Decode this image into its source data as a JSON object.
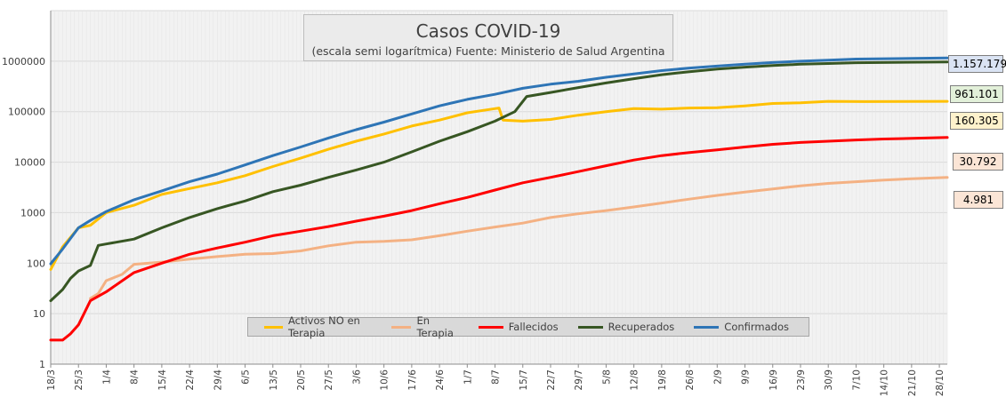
{
  "chart_data": {
    "type": "line",
    "title": "Casos COVID-19",
    "subtitle": "(escala semi logarítmica) Fuente: Ministerio de Salud Argentina",
    "y_scale": "log",
    "ylim": [
      1,
      10000000
    ],
    "y_ticks": [
      "1",
      "10",
      "100",
      "1000",
      "10000",
      "100000",
      "1000000"
    ],
    "x_tick_labels": [
      "18/3",
      "25/3",
      "1/4",
      "8/4",
      "15/4",
      "22/4",
      "29/4",
      "6/5",
      "13/5",
      "20/5",
      "27/5",
      "3/6",
      "10/6",
      "17/6",
      "24/6",
      "1/7",
      "8/7",
      "15/7",
      "22/7",
      "29/7",
      "5/8",
      "12/8",
      "19/8",
      "26/8",
      "2/9",
      "9/9",
      "16/9",
      "23/9",
      "30/9",
      "7/10",
      "14/10",
      "21/10",
      "28/10"
    ],
    "x_range_days": [
      "18/3",
      "30/10"
    ],
    "grid": true,
    "legend_position": "bottom",
    "background": "#f2f2f2",
    "series": [
      {
        "name": "Activos NO en Terapia",
        "color": "#ffc000",
        "points": [
          [
            0,
            75
          ],
          [
            3,
            210
          ],
          [
            7,
            500
          ],
          [
            10,
            560
          ],
          [
            14,
            1000
          ],
          [
            21,
            1400
          ],
          [
            28,
            2300
          ],
          [
            35,
            3000
          ],
          [
            42,
            3900
          ],
          [
            49,
            5400
          ],
          [
            56,
            8200
          ],
          [
            63,
            12000
          ],
          [
            70,
            18000
          ],
          [
            77,
            26000
          ],
          [
            84,
            36000
          ],
          [
            91,
            52000
          ],
          [
            98,
            68000
          ],
          [
            105,
            95000
          ],
          [
            112,
            115000
          ],
          [
            113,
            118000
          ],
          [
            114,
            68000
          ],
          [
            119,
            65000
          ],
          [
            126,
            70000
          ],
          [
            133,
            85000
          ],
          [
            140,
            100000
          ],
          [
            147,
            115000
          ],
          [
            154,
            112000
          ],
          [
            161,
            118000
          ],
          [
            168,
            120000
          ],
          [
            175,
            130000
          ],
          [
            182,
            145000
          ],
          [
            189,
            150000
          ],
          [
            196,
            160000
          ],
          [
            205,
            158000
          ],
          [
            226,
            160305
          ]
        ],
        "last_label": "160.305"
      },
      {
        "name": "En Terapia",
        "color": "#f4b183",
        "points": [
          [
            10,
            20
          ],
          [
            12,
            25
          ],
          [
            14,
            45
          ],
          [
            18,
            60
          ],
          [
            21,
            95
          ],
          [
            28,
            105
          ],
          [
            35,
            120
          ],
          [
            42,
            135
          ],
          [
            49,
            150
          ],
          [
            56,
            155
          ],
          [
            63,
            175
          ],
          [
            70,
            220
          ],
          [
            77,
            260
          ],
          [
            84,
            270
          ],
          [
            91,
            290
          ],
          [
            98,
            350
          ],
          [
            105,
            430
          ],
          [
            112,
            520
          ],
          [
            119,
            620
          ],
          [
            126,
            800
          ],
          [
            133,
            950
          ],
          [
            140,
            1100
          ],
          [
            147,
            1300
          ],
          [
            154,
            1550
          ],
          [
            161,
            1850
          ],
          [
            168,
            2200
          ],
          [
            175,
            2550
          ],
          [
            182,
            2950
          ],
          [
            189,
            3400
          ],
          [
            196,
            3800
          ],
          [
            203,
            4100
          ],
          [
            210,
            4400
          ],
          [
            217,
            4700
          ],
          [
            226,
            4981
          ]
        ],
        "last_label": "4.981"
      },
      {
        "name": "Fallecidos",
        "color": "#ff0000",
        "points": [
          [
            0,
            3
          ],
          [
            3,
            3
          ],
          [
            5,
            4
          ],
          [
            7,
            6
          ],
          [
            10,
            18
          ],
          [
            14,
            27
          ],
          [
            21,
            65
          ],
          [
            28,
            100
          ],
          [
            35,
            150
          ],
          [
            42,
            200
          ],
          [
            49,
            260
          ],
          [
            56,
            350
          ],
          [
            63,
            430
          ],
          [
            70,
            530
          ],
          [
            77,
            680
          ],
          [
            84,
            850
          ],
          [
            91,
            1100
          ],
          [
            98,
            1500
          ],
          [
            105,
            2000
          ],
          [
            112,
            2800
          ],
          [
            119,
            3900
          ],
          [
            126,
            5000
          ],
          [
            133,
            6500
          ],
          [
            140,
            8500
          ],
          [
            147,
            11000
          ],
          [
            154,
            13500
          ],
          [
            161,
            15500
          ],
          [
            168,
            17500
          ],
          [
            175,
            20000
          ],
          [
            182,
            22500
          ],
          [
            189,
            24500
          ],
          [
            196,
            26000
          ],
          [
            203,
            27500
          ],
          [
            210,
            28800
          ],
          [
            226,
            30792
          ]
        ],
        "last_label": "30.792"
      },
      {
        "name": "Recuperados",
        "color": "#375623",
        "points": [
          [
            0,
            18
          ],
          [
            3,
            30
          ],
          [
            5,
            50
          ],
          [
            7,
            70
          ],
          [
            10,
            90
          ],
          [
            12,
            225
          ],
          [
            14,
            240
          ],
          [
            21,
            300
          ],
          [
            28,
            500
          ],
          [
            35,
            800
          ],
          [
            42,
            1200
          ],
          [
            49,
            1700
          ],
          [
            56,
            2600
          ],
          [
            63,
            3500
          ],
          [
            70,
            5000
          ],
          [
            77,
            7000
          ],
          [
            84,
            10000
          ],
          [
            91,
            16000
          ],
          [
            98,
            26000
          ],
          [
            105,
            40000
          ],
          [
            112,
            65000
          ],
          [
            117,
            100000
          ],
          [
            120,
            200000
          ],
          [
            126,
            240000
          ],
          [
            133,
            300000
          ],
          [
            140,
            370000
          ],
          [
            147,
            450000
          ],
          [
            154,
            540000
          ],
          [
            161,
            620000
          ],
          [
            168,
            700000
          ],
          [
            175,
            760000
          ],
          [
            182,
            820000
          ],
          [
            189,
            870000
          ],
          [
            196,
            900000
          ],
          [
            203,
            930000
          ],
          [
            226,
            961101
          ]
        ],
        "last_label": "961.101"
      },
      {
        "name": "Confirmados",
        "color": "#2e75b6",
        "points": [
          [
            0,
            97
          ],
          [
            3,
            190
          ],
          [
            7,
            500
          ],
          [
            10,
            700
          ],
          [
            14,
            1050
          ],
          [
            21,
            1800
          ],
          [
            28,
            2700
          ],
          [
            35,
            4100
          ],
          [
            42,
            5800
          ],
          [
            49,
            8800
          ],
          [
            56,
            13500
          ],
          [
            63,
            20000
          ],
          [
            70,
            30000
          ],
          [
            77,
            44000
          ],
          [
            84,
            62000
          ],
          [
            91,
            90000
          ],
          [
            98,
            130000
          ],
          [
            105,
            175000
          ],
          [
            112,
            220000
          ],
          [
            119,
            290000
          ],
          [
            126,
            350000
          ],
          [
            133,
            400000
          ],
          [
            140,
            480000
          ],
          [
            147,
            560000
          ],
          [
            154,
            650000
          ],
          [
            161,
            730000
          ],
          [
            168,
            800000
          ],
          [
            175,
            870000
          ],
          [
            182,
            940000
          ],
          [
            189,
            1000000
          ],
          [
            196,
            1050000
          ],
          [
            203,
            1100000
          ],
          [
            226,
            1157179
          ]
        ],
        "last_label": "1.157.179"
      }
    ]
  }
}
